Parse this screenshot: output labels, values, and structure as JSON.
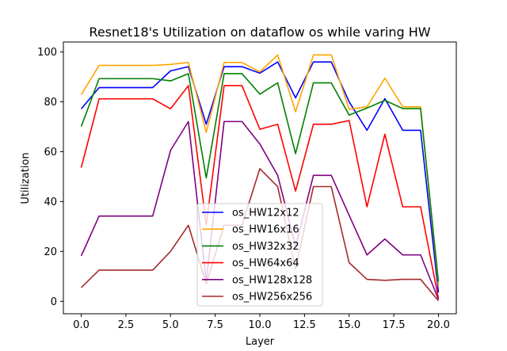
{
  "chart_data": {
    "type": "line",
    "title": "Resnet18's Utilization on dataflow os while varing HW",
    "xlabel": "Layer",
    "ylabel": "Utilization",
    "xlim": [
      -1,
      21
    ],
    "ylim": [
      -5,
      104
    ],
    "xticks": [
      0,
      2.5,
      5,
      7.5,
      10,
      12.5,
      15,
      17.5,
      20
    ],
    "xtick_labels": [
      "0.0",
      "2.5",
      "5.0",
      "7.5",
      "10.0",
      "12.5",
      "15.0",
      "17.5",
      "20.0"
    ],
    "yticks": [
      0,
      20,
      40,
      60,
      80,
      100
    ],
    "ytick_labels": [
      "0",
      "20",
      "40",
      "60",
      "80",
      "100"
    ],
    "grid": false,
    "legend_position": "lower-center",
    "x": [
      0,
      1,
      2,
      3,
      4,
      5,
      6,
      7,
      8,
      9,
      10,
      11,
      12,
      13,
      14,
      15,
      16,
      17,
      18,
      19,
      20
    ],
    "series": [
      {
        "name": "os_HW12x12",
        "color": "#0000ff",
        "values": [
          77.2,
          85.7,
          85.7,
          85.7,
          85.7,
          92.4,
          94.1,
          71.0,
          94.1,
          94.1,
          91.5,
          96.0,
          81.6,
          96.0,
          96.0,
          80.0,
          68.6,
          81.3,
          68.6,
          68.6,
          3.5
        ]
      },
      {
        "name": "os_HW16x16",
        "color": "#ffa500",
        "values": [
          82.9,
          94.6,
          94.6,
          94.6,
          94.6,
          95.0,
          95.8,
          67.7,
          95.8,
          95.8,
          92.0,
          98.8,
          76.0,
          98.8,
          98.8,
          77.0,
          78.0,
          89.5,
          78.0,
          78.0,
          6.3
        ]
      },
      {
        "name": "os_HW32x32",
        "color": "#008000",
        "values": [
          70.1,
          89.3,
          89.3,
          89.3,
          89.3,
          88.4,
          91.3,
          49.5,
          91.3,
          91.3,
          83.1,
          87.6,
          59.2,
          87.6,
          87.6,
          74.7,
          77.5,
          80.6,
          77.3,
          77.3,
          7.9
        ]
      },
      {
        "name": "os_HW64x64",
        "color": "#ff0000",
        "values": [
          53.6,
          81.2,
          81.2,
          81.2,
          81.2,
          77.2,
          86.5,
          30.7,
          86.5,
          86.5,
          69.0,
          71.0,
          44.2,
          71.0,
          71.0,
          72.5,
          37.9,
          67.0,
          37.9,
          37.9,
          1.2
        ]
      },
      {
        "name": "os_HW128x128",
        "color": "#800080",
        "values": [
          18.2,
          34.2,
          34.2,
          34.2,
          34.2,
          60.5,
          72.1,
          7.8,
          72.1,
          72.1,
          63.1,
          50.5,
          22.0,
          50.5,
          50.5,
          34.5,
          18.6,
          25.0,
          18.6,
          18.6,
          0.8
        ]
      },
      {
        "name": "os_HW256x256",
        "color": "#a52a2a",
        "values": [
          5.5,
          12.5,
          12.5,
          12.5,
          12.5,
          20.0,
          30.5,
          7.0,
          30.5,
          30.5,
          53.2,
          46.0,
          13.0,
          46.0,
          46.0,
          15.5,
          8.8,
          8.4,
          8.8,
          8.8,
          0.2
        ]
      }
    ]
  }
}
